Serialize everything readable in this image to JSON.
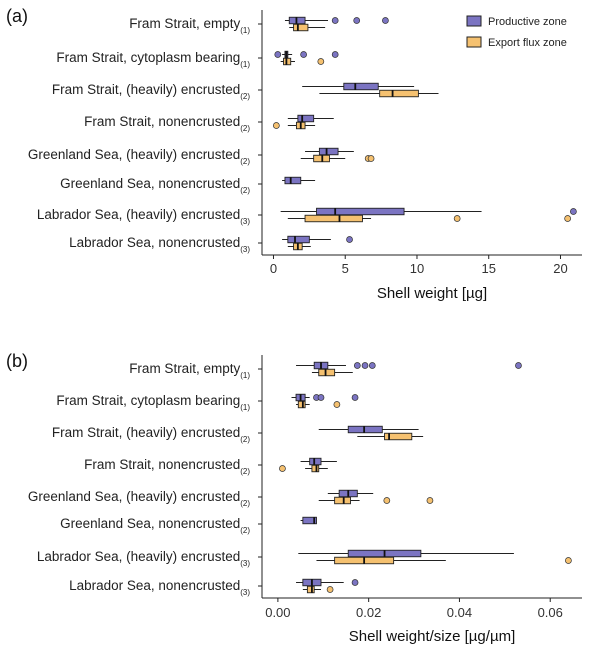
{
  "colors": {
    "productive": "#7b74c2",
    "export": "#f5c170",
    "line": "#222222"
  },
  "legend": {
    "productive_label": "Productive zone",
    "export_label": "Export flux zone"
  },
  "chart_data": [
    {
      "type": "boxplot",
      "panel_label": "(a)",
      "xlabel": "Shell weight [µg]",
      "xlim": [
        -0.8,
        21.5
      ],
      "xticks": [
        0,
        5,
        10,
        15,
        20
      ],
      "tick_labels": [
        "0",
        "5",
        "10",
        "15",
        "20"
      ],
      "categories": [
        {
          "label": "Fram Strait, empty",
          "sub": "(1)"
        },
        {
          "label": "Fram Strait, cytoplasm bearing",
          "sub": "(1)"
        },
        {
          "label": "Fram Strait, (heavily) encrusted",
          "sub": "(2)"
        },
        {
          "label": "Fram Strait, nonencrusted",
          "sub": "(2)"
        },
        {
          "label": "Greenland Sea, (heavily) encrusted",
          "sub": "(2)"
        },
        {
          "label": "Greenland Sea, nonencrusted",
          "sub": "(2)"
        },
        {
          "label": "Labrador Sea, (heavily) encrusted",
          "sub": "(3)"
        },
        {
          "label": "Labrador Sea, nonencrusted",
          "sub": "(3)"
        }
      ],
      "series": [
        {
          "name": "Productive zone",
          "boxes": [
            {
              "min": 0.8,
              "q1": 1.1,
              "median": 1.6,
              "q3": 2.2,
              "max": 3.8,
              "outliers": [
                4.3,
                5.8,
                7.8
              ]
            },
            {
              "min": 0.6,
              "q1": 0.8,
              "median": 0.9,
              "q3": 1.0,
              "max": 1.3,
              "outliers": [
                0.3,
                2.1,
                4.3
              ]
            },
            {
              "min": 2.0,
              "q1": 4.9,
              "median": 5.7,
              "q3": 7.3,
              "max": 9.8,
              "outliers": []
            },
            {
              "min": 1.0,
              "q1": 1.7,
              "median": 2.0,
              "q3": 2.8,
              "max": 4.2,
              "outliers": []
            },
            {
              "min": 2.2,
              "q1": 3.2,
              "median": 3.7,
              "q3": 4.5,
              "max": 5.6,
              "outliers": []
            },
            {
              "min": 0.6,
              "q1": 0.8,
              "median": 1.2,
              "q3": 1.9,
              "max": 2.9,
              "outliers": []
            },
            {
              "min": 0.5,
              "q1": 3.0,
              "median": 4.3,
              "q3": 9.1,
              "max": 14.5,
              "outliers": [
                20.9
              ]
            },
            {
              "min": 0.6,
              "q1": 1.0,
              "median": 1.5,
              "q3": 2.5,
              "max": 4.0,
              "outliers": [
                5.3
              ]
            }
          ]
        },
        {
          "name": "Export flux zone",
          "boxes": [
            {
              "min": 1.1,
              "q1": 1.4,
              "median": 1.7,
              "q3": 2.4,
              "max": 3.6,
              "outliers": []
            },
            {
              "min": 0.5,
              "q1": 0.7,
              "median": 0.9,
              "q3": 1.2,
              "max": 1.5,
              "outliers": [
                3.3
              ]
            },
            {
              "min": 3.2,
              "q1": 7.4,
              "median": 8.3,
              "q3": 10.1,
              "max": 11.5,
              "outliers": []
            },
            {
              "min": 1.0,
              "q1": 1.6,
              "median": 1.9,
              "q3": 2.2,
              "max": 2.9,
              "outliers": [
                0.2
              ]
            },
            {
              "min": 1.9,
              "q1": 2.8,
              "median": 3.4,
              "q3": 3.9,
              "max": 5.0,
              "outliers": [
                6.6,
                6.8
              ]
            },
            {
              "min": null,
              "q1": null,
              "median": null,
              "q3": null,
              "max": null,
              "outliers": []
            },
            {
              "min": 1.0,
              "q1": 2.2,
              "median": 4.6,
              "q3": 6.2,
              "max": 6.8,
              "outliers": [
                12.8,
                20.5
              ]
            },
            {
              "min": 1.0,
              "q1": 1.4,
              "median": 1.7,
              "q3": 2.0,
              "max": 2.6,
              "outliers": []
            }
          ]
        }
      ]
    },
    {
      "type": "boxplot",
      "panel_label": "(b)",
      "xlabel": "Shell weight/size [µg/µm]",
      "xlim": [
        -0.0035,
        0.067
      ],
      "xticks": [
        0,
        0.02,
        0.04,
        0.06
      ],
      "tick_labels": [
        "0.00",
        "0.02",
        "0.04",
        "0.06"
      ],
      "categories": [
        {
          "label": "Fram Strait, empty",
          "sub": "(1)"
        },
        {
          "label": "Fram Strait, cytoplasm bearing",
          "sub": "(1)"
        },
        {
          "label": "Fram Strait, (heavily) encrusted",
          "sub": "(2)"
        },
        {
          "label": "Fram Strait, nonencrusted",
          "sub": "(2)"
        },
        {
          "label": "Greenland Sea, (heavily) encrusted",
          "sub": "(2)"
        },
        {
          "label": "Greenland Sea, nonencrusted",
          "sub": "(2)"
        },
        {
          "label": "Labrador Sea, (heavily) encrusted",
          "sub": "(3)"
        },
        {
          "label": "Labrador Sea, nonencrusted",
          "sub": "(3)"
        }
      ],
      "series": [
        {
          "name": "Productive zone",
          "boxes": [
            {
              "min": 0.004,
              "q1": 0.008,
              "median": 0.0095,
              "q3": 0.011,
              "max": 0.015,
              "outliers": [
                0.0175,
                0.0192,
                0.0208,
                0.053
              ]
            },
            {
              "min": 0.003,
              "q1": 0.004,
              "median": 0.005,
              "q3": 0.006,
              "max": 0.007,
              "outliers": [
                0.0085,
                0.0095,
                0.017
              ]
            },
            {
              "min": 0.009,
              "q1": 0.0155,
              "median": 0.019,
              "q3": 0.023,
              "max": 0.031,
              "outliers": []
            },
            {
              "min": 0.005,
              "q1": 0.007,
              "median": 0.008,
              "q3": 0.0095,
              "max": 0.013,
              "outliers": []
            },
            {
              "min": 0.011,
              "q1": 0.0135,
              "median": 0.0155,
              "q3": 0.0175,
              "max": 0.021,
              "outliers": []
            },
            {
              "min": 0.005,
              "q1": 0.0055,
              "median": 0.008,
              "q3": 0.0085,
              "max": 0.0085,
              "outliers": []
            },
            {
              "min": 0.0045,
              "q1": 0.0155,
              "median": 0.0235,
              "q3": 0.0315,
              "max": 0.052,
              "outliers": []
            },
            {
              "min": 0.004,
              "q1": 0.0055,
              "median": 0.0075,
              "q3": 0.0095,
              "max": 0.0145,
              "outliers": [
                0.017
              ]
            }
          ]
        },
        {
          "name": "Export flux zone",
          "boxes": [
            {
              "min": 0.0075,
              "q1": 0.009,
              "median": 0.0105,
              "q3": 0.0125,
              "max": 0.0165,
              "outliers": []
            },
            {
              "min": 0.004,
              "q1": 0.0045,
              "median": 0.0055,
              "q3": 0.006,
              "max": 0.007,
              "outliers": [
                0.013
              ]
            },
            {
              "min": 0.0175,
              "q1": 0.0235,
              "median": 0.0245,
              "q3": 0.0295,
              "max": 0.032,
              "outliers": []
            },
            {
              "min": 0.006,
              "q1": 0.0075,
              "median": 0.0085,
              "q3": 0.009,
              "max": 0.011,
              "outliers": [
                0.001
              ]
            },
            {
              "min": 0.009,
              "q1": 0.0125,
              "median": 0.0145,
              "q3": 0.016,
              "max": 0.018,
              "outliers": [
                0.024,
                0.0335
              ]
            },
            {
              "min": null,
              "q1": null,
              "median": null,
              "q3": null,
              "max": null,
              "outliers": []
            },
            {
              "min": 0.0085,
              "q1": 0.0125,
              "median": 0.019,
              "q3": 0.0255,
              "max": 0.037,
              "outliers": [
                0.064
              ]
            },
            {
              "min": 0.0055,
              "q1": 0.0065,
              "median": 0.0075,
              "q3": 0.008,
              "max": 0.0095,
              "outliers": [
                0.0115
              ]
            }
          ]
        }
      ]
    }
  ]
}
